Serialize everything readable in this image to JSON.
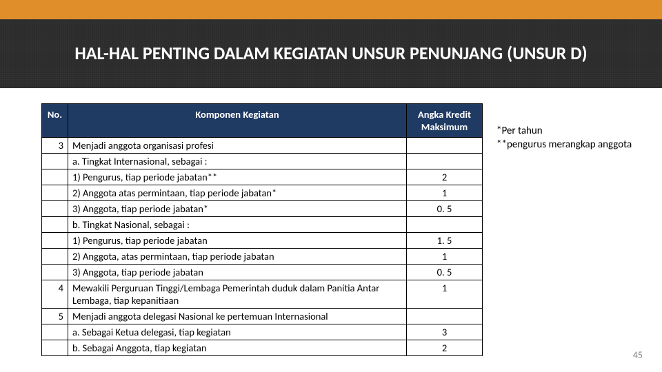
{
  "accent_color": "#e08e2a",
  "title_bg": "#2b2b2b",
  "header_bg": "#1f3a63",
  "border_color": "#000000",
  "title": "HAL-HAL PENTING DALAM KEGIATAN UNSUR PENUNJANG  (UNSUR D)",
  "columns": {
    "no": "No.",
    "komp": "Komponen Kegiatan",
    "kredit": "Angka  Kredit Maksimum"
  },
  "rows": {
    "r0": {
      "no": "3",
      "text": "Menjadi anggota organisasi profesi",
      "val": ""
    },
    "r1": {
      "no": "",
      "text": "a. Tingkat Internasional, sebagai :",
      "val": ""
    },
    "r2": {
      "no": "",
      "text": "1) Pengurus, tiap periode jabatan**",
      "val": "2"
    },
    "r3": {
      "no": "",
      "text": "2) Anggota atas permintaan, tiap periode jabatan*",
      "val": "1"
    },
    "r4": {
      "no": "",
      "text": "3) Anggota,  tiap periode jabatan*",
      "val": "0. 5"
    },
    "r5": {
      "no": "",
      "text": "b. Tingkat Nasional, sebagai :",
      "val": ""
    },
    "r6": {
      "no": "",
      "text": "1) Pengurus, tiap periode jabatan",
      "val": "1. 5"
    },
    "r7": {
      "no": "",
      "text": "2) Anggota, atas permintaan, tiap periode jabatan",
      "val": "1"
    },
    "r8": {
      "no": "",
      "text": "3) Anggota, tiap periode jabatan",
      "val": "0. 5"
    },
    "r9": {
      "no": "4",
      "text": "Mewakili Perguruan Tinggi/Lembaga Pemerintah  duduk dalam Panitia Antar Lembaga, tiap kepanitiaan",
      "val": "1"
    },
    "r10": {
      "no": "5",
      "text": "Menjadi anggota delegasi Nasional ke pertemuan Internasional",
      "val": ""
    },
    "r11": {
      "no": "",
      "text": "a. Sebagai Ketua delegasi, tiap kegiatan",
      "val": "3"
    },
    "r12": {
      "no": "",
      "text": "b. Sebagai Anggota, tiap kegiatan",
      "val": "2"
    }
  },
  "notes": {
    "n1": "*Per tahun",
    "n2": "**pengurus merangkap anggota"
  },
  "page_number": "45"
}
